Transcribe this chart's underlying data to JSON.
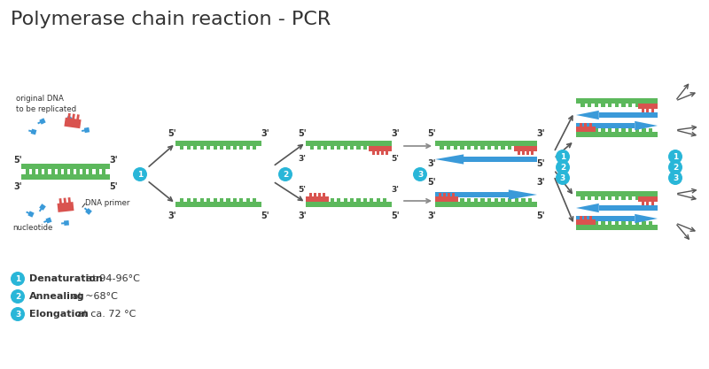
{
  "title": "Polymerase chain reaction - PCR",
  "title_fontsize": 16,
  "bg_color": "#ffffff",
  "text_color": "#2c3e50",
  "green_color": "#5cb85c",
  "red_color": "#d9534f",
  "blue_dna_color": "#3a9ad9",
  "teal_color": "#29b6d8",
  "dark_color": "#333333",
  "arrow_color": "#555555",
  "legend": [
    {
      "num": "1",
      "bold": "Denaturation",
      "rest": " at 94-96°C"
    },
    {
      "num": "2",
      "bold": "Annealing",
      "rest": " at ~68°C"
    },
    {
      "num": "3",
      "bold": "Elongation",
      "rest": " at ca. 72 °C"
    }
  ]
}
